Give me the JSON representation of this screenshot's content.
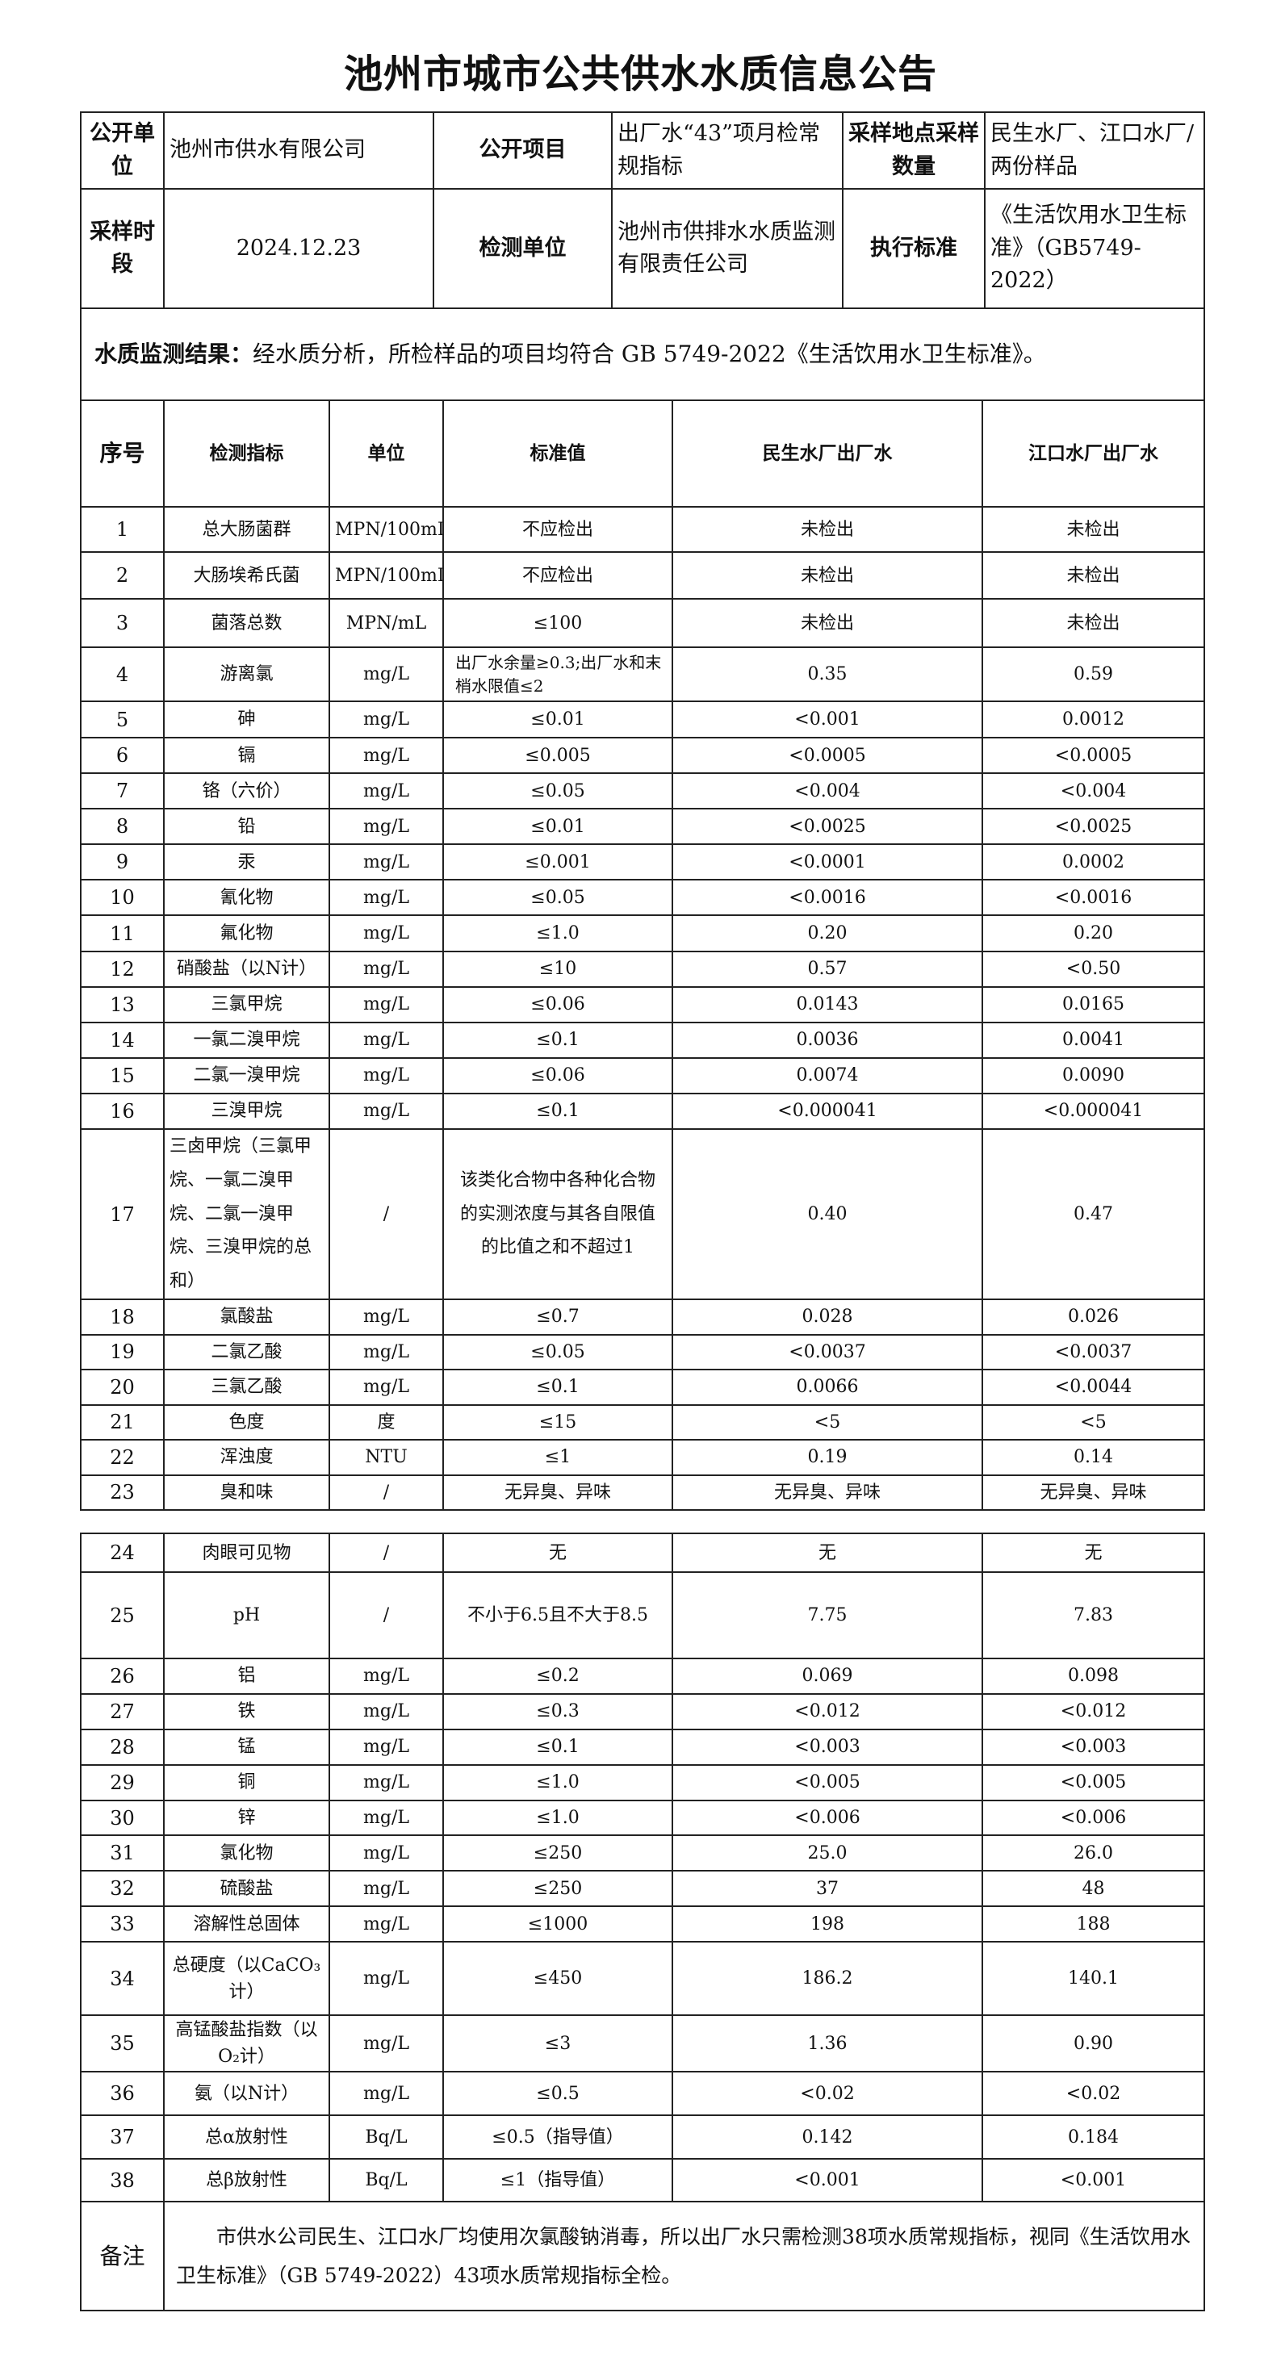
{
  "title": "池州市城市公共供水水质信息公告",
  "info": {
    "publisher_label": "公开单位",
    "publisher": "池州市供水有限公司",
    "project_label": "公开项目",
    "project": "出厂水“43”项月检常规指标",
    "site_label": "采样地点采样数量",
    "site": "民生水厂、江口水厂/两份样品",
    "period_label": "采样时段",
    "period": "2024.12.23",
    "lab_label": "检测单位",
    "lab": "池州市供排水水质监测有限责任公司",
    "standard_label": "执行标准",
    "standard": "《生活饮用水卫生标准》（GB5749-2022）"
  },
  "result": {
    "label": "水质监测结果：",
    "text": "经水质分析，所检样品的项目均符合 GB 5749-2022《生活饮用水卫生标准》。"
  },
  "columns": [
    "序号",
    "检测指标",
    "单位",
    "标准值",
    "民生水厂出厂水",
    "江口水厂出厂水"
  ],
  "rows": [
    [
      "1",
      "总大肠菌群",
      "MPN/100mL",
      "不应检出",
      "未检出",
      "未检出"
    ],
    [
      "2",
      "大肠埃希氏菌",
      "MPN/100mL",
      "不应检出",
      "未检出",
      "未检出"
    ],
    [
      "3",
      "菌落总数",
      "MPN/mL",
      "≤100",
      "未检出",
      "未检出"
    ],
    [
      "4",
      "游离氯",
      "mg/L",
      "出厂水余量≥0.3;出厂水和末梢水限值≤2",
      "0.35",
      "0.59"
    ],
    [
      "5",
      "砷",
      "mg/L",
      "≤0.01",
      "<0.001",
      "0.0012"
    ],
    [
      "6",
      "镉",
      "mg/L",
      "≤0.005",
      "<0.0005",
      "<0.0005"
    ],
    [
      "7",
      "铬（六价）",
      "mg/L",
      "≤0.05",
      "<0.004",
      "<0.004"
    ],
    [
      "8",
      "铅",
      "mg/L",
      "≤0.01",
      "<0.0025",
      "<0.0025"
    ],
    [
      "9",
      "汞",
      "mg/L",
      "≤0.001",
      "<0.0001",
      "0.0002"
    ],
    [
      "10",
      "氰化物",
      "mg/L",
      "≤0.05",
      "<0.0016",
      "<0.0016"
    ],
    [
      "11",
      "氟化物",
      "mg/L",
      "≤1.0",
      "0.20",
      "0.20"
    ],
    [
      "12",
      "硝酸盐（以N计）",
      "mg/L",
      "≤10",
      "0.57",
      "<0.50"
    ],
    [
      "13",
      "三氯甲烷",
      "mg/L",
      "≤0.06",
      "0.0143",
      "0.0165"
    ],
    [
      "14",
      "一氯二溴甲烷",
      "mg/L",
      "≤0.1",
      "0.0036",
      "0.0041"
    ],
    [
      "15",
      "二氯一溴甲烷",
      "mg/L",
      "≤0.06",
      "0.0074",
      "0.0090"
    ],
    [
      "16",
      "三溴甲烷",
      "mg/L",
      "≤0.1",
      "<0.000041",
      "<0.000041"
    ],
    [
      "17",
      "三卤甲烷（三氯甲烷、一氯二溴甲烷、二氯一溴甲烷、三溴甲烷的总和）",
      "/",
      "该类化合物中各种化合物的实测浓度与其各自限值的比值之和不超过1",
      "0.40",
      "0.47"
    ],
    [
      "18",
      "氯酸盐",
      "mg/L",
      "≤0.7",
      "0.028",
      "0.026"
    ],
    [
      "19",
      "二氯乙酸",
      "mg/L",
      "≤0.05",
      "<0.0037",
      "<0.0037"
    ],
    [
      "20",
      "三氯乙酸",
      "mg/L",
      "≤0.1",
      "0.0066",
      "<0.0044"
    ],
    [
      "21",
      "色度",
      "度",
      "≤15",
      "<5",
      "<5"
    ],
    [
      "22",
      "浑浊度",
      "NTU",
      "≤1",
      "0.19",
      "0.14"
    ],
    [
      "23",
      "臭和味",
      "/",
      "无异臭、异味",
      "无异臭、异味",
      "无异臭、异味"
    ],
    [
      "24",
      "肉眼可见物",
      "/",
      "无",
      "无",
      "无"
    ],
    [
      "25",
      "pH",
      "/",
      "不小于6.5且不大于8.5",
      "7.75",
      "7.83"
    ],
    [
      "26",
      "铝",
      "mg/L",
      "≤0.2",
      "0.069",
      "0.098"
    ],
    [
      "27",
      "铁",
      "mg/L",
      "≤0.3",
      "<0.012",
      "<0.012"
    ],
    [
      "28",
      "锰",
      "mg/L",
      "≤0.1",
      "<0.003",
      "<0.003"
    ],
    [
      "29",
      "铜",
      "mg/L",
      "≤1.0",
      "<0.005",
      "<0.005"
    ],
    [
      "30",
      "锌",
      "mg/L",
      "≤1.0",
      "<0.006",
      "<0.006"
    ],
    [
      "31",
      "氯化物",
      "mg/L",
      "≤250",
      "25.0",
      "26.0"
    ],
    [
      "32",
      "硫酸盐",
      "mg/L",
      "≤250",
      "37",
      "48"
    ],
    [
      "33",
      "溶解性总固体",
      "mg/L",
      "≤1000",
      "198",
      "188"
    ],
    [
      "34",
      "总硬度（以CaCO₃计）",
      "mg/L",
      "≤450",
      "186.2",
      "140.1"
    ],
    [
      "35",
      "高锰酸盐指数（以O₂计）",
      "mg/L",
      "≤3",
      "1.36",
      "0.90"
    ],
    [
      "36",
      "氨（以N计）",
      "mg/L",
      "≤0.5",
      "<0.02",
      "<0.02"
    ],
    [
      "37",
      "总α放射性",
      "Bq/L",
      "≤0.5（指导值）",
      "0.142",
      "0.184"
    ],
    [
      "38",
      "总β放射性",
      "Bq/L",
      "≤1（指导值）",
      "<0.001",
      "<0.001"
    ]
  ],
  "remarks": {
    "label": "备注",
    "text": "市供水公司民生、江口水厂均使用次氯酸钠消毒，所以出厂水只需检测38项水质常规指标，视同《生活饮用水卫生标准》（GB 5749-2022）43项水质常规指标全检。"
  }
}
